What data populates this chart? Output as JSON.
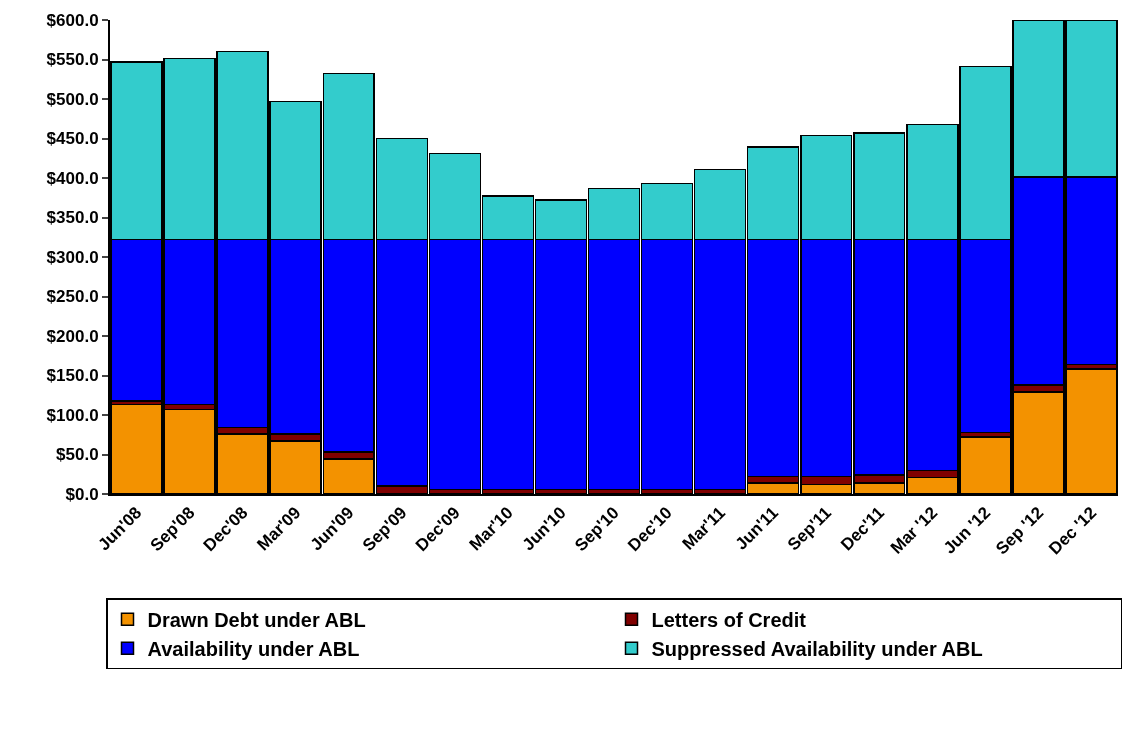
{
  "chart_data": {
    "type": "bar",
    "stacked": true,
    "categories": [
      "Jun'08",
      "Sep'08",
      "Dec'08",
      "Mar'09",
      "Jun'09",
      "Sep'09",
      "Dec'09",
      "Mar'10",
      "Jun'10",
      "Sep'10",
      "Dec'10",
      "Mar'11",
      "Jun'11",
      "Sep'11",
      "Dec'11",
      "Mar '12",
      "Jun '12",
      "Sep '12",
      "Dec '12"
    ],
    "series": [
      {
        "name": "Drawn Debt under ABL",
        "color": "#f39200",
        "values": [
          113,
          107,
          76,
          67,
          44,
          0,
          0,
          0,
          0,
          0,
          0,
          0,
          14,
          12,
          14,
          21,
          72,
          129,
          158
        ]
      },
      {
        "name": "Letters of Credit",
        "color": "#800000",
        "values": [
          5,
          6,
          8,
          9,
          9,
          10,
          6,
          6,
          6,
          6,
          6,
          6,
          8,
          10,
          10,
          9,
          6,
          9,
          6
        ]
      },
      {
        "name": "Availability under ABL",
        "color": "#0000ff",
        "values": [
          204,
          209,
          238,
          246,
          269,
          312,
          316,
          316,
          316,
          316,
          316,
          316,
          300,
          300,
          298,
          292,
          244,
          263,
          237
        ]
      },
      {
        "name": "Suppressed Availability under ABL",
        "color": "#33cccc",
        "values": [
          225,
          229,
          238,
          175,
          210,
          128,
          109,
          55,
          50,
          65,
          71,
          89,
          117,
          132,
          135,
          146,
          219,
          199,
          199
        ]
      }
    ],
    "ylim": [
      0,
      600
    ],
    "yticks": [
      {
        "value": 0,
        "label": "$0.0"
      },
      {
        "value": 50,
        "label": "$50.0"
      },
      {
        "value": 100,
        "label": "$100.0"
      },
      {
        "value": 150,
        "label": "$150.0"
      },
      {
        "value": 200,
        "label": "$200.0"
      },
      {
        "value": 250,
        "label": "$250.0"
      },
      {
        "value": 300,
        "label": "$300.0"
      },
      {
        "value": 350,
        "label": "$350.0"
      },
      {
        "value": 400,
        "label": "$400.0"
      },
      {
        "value": 450,
        "label": "$450.0"
      },
      {
        "value": 500,
        "label": "$500.0"
      },
      {
        "value": 550,
        "label": "$550.0"
      },
      {
        "value": 600,
        "label": "$600.0"
      }
    ],
    "grid": false,
    "legend": "bottom"
  }
}
